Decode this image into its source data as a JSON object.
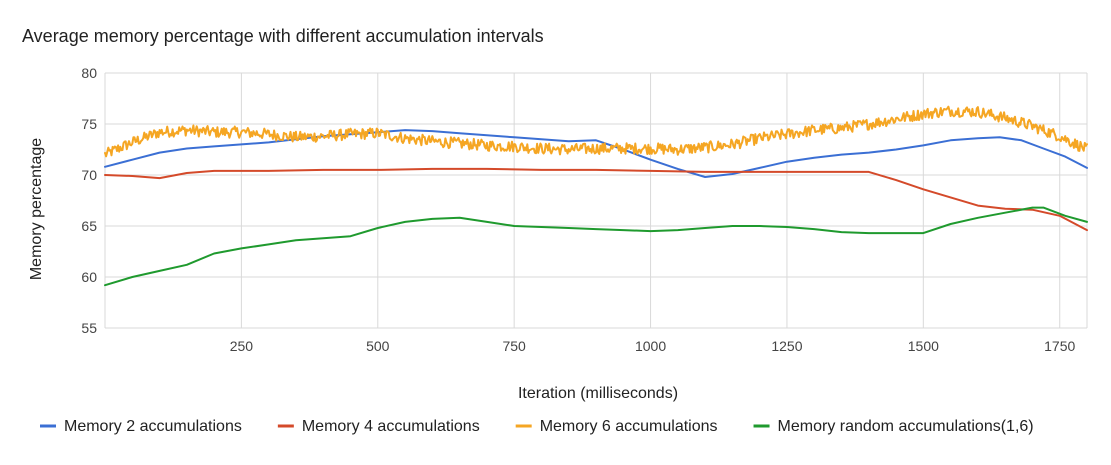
{
  "chart_data": {
    "type": "line",
    "title": "Average memory percentage with different accumulation intervals",
    "xlabel": "Iteration (milliseconds)",
    "ylabel": "Memory percentage",
    "xlim": [
      0,
      1800
    ],
    "ylim": [
      55,
      80
    ],
    "x_ticks": [
      250,
      500,
      750,
      1000,
      1250,
      1500,
      1750
    ],
    "y_ticks": [
      55,
      60,
      65,
      70,
      75,
      80
    ],
    "grid": true,
    "legend_position": "bottom",
    "series": [
      {
        "name": "Memory 2 accumulations",
        "color": "#3b6fd4",
        "noise": 0,
        "points": [
          [
            0,
            70.8
          ],
          [
            50,
            71.5
          ],
          [
            100,
            72.2
          ],
          [
            150,
            72.6
          ],
          [
            200,
            72.8
          ],
          [
            250,
            73.0
          ],
          [
            300,
            73.2
          ],
          [
            350,
            73.5
          ],
          [
            400,
            73.8
          ],
          [
            450,
            74.0
          ],
          [
            500,
            74.2
          ],
          [
            550,
            74.4
          ],
          [
            600,
            74.3
          ],
          [
            650,
            74.1
          ],
          [
            700,
            73.9
          ],
          [
            750,
            73.7
          ],
          [
            800,
            73.5
          ],
          [
            850,
            73.3
          ],
          [
            900,
            73.4
          ],
          [
            950,
            72.5
          ],
          [
            1000,
            71.5
          ],
          [
            1050,
            70.6
          ],
          [
            1100,
            69.8
          ],
          [
            1150,
            70.1
          ],
          [
            1200,
            70.7
          ],
          [
            1250,
            71.3
          ],
          [
            1300,
            71.7
          ],
          [
            1350,
            72.0
          ],
          [
            1400,
            72.2
          ],
          [
            1450,
            72.5
          ],
          [
            1500,
            72.9
          ],
          [
            1550,
            73.4
          ],
          [
            1600,
            73.6
          ],
          [
            1640,
            73.7
          ],
          [
            1680,
            73.4
          ],
          [
            1720,
            72.6
          ],
          [
            1760,
            71.8
          ],
          [
            1800,
            70.7
          ]
        ]
      },
      {
        "name": "Memory 4 accumulations",
        "color": "#d44a2a",
        "noise": 0,
        "points": [
          [
            0,
            70.0
          ],
          [
            50,
            69.9
          ],
          [
            100,
            69.7
          ],
          [
            150,
            70.2
          ],
          [
            200,
            70.4
          ],
          [
            300,
            70.4
          ],
          [
            400,
            70.5
          ],
          [
            500,
            70.5
          ],
          [
            600,
            70.6
          ],
          [
            700,
            70.6
          ],
          [
            800,
            70.5
          ],
          [
            900,
            70.5
          ],
          [
            1000,
            70.4
          ],
          [
            1100,
            70.3
          ],
          [
            1200,
            70.3
          ],
          [
            1300,
            70.3
          ],
          [
            1350,
            70.3
          ],
          [
            1400,
            70.3
          ],
          [
            1450,
            69.5
          ],
          [
            1500,
            68.6
          ],
          [
            1550,
            67.8
          ],
          [
            1600,
            67.0
          ],
          [
            1650,
            66.7
          ],
          [
            1700,
            66.6
          ],
          [
            1750,
            66.0
          ],
          [
            1800,
            64.6
          ]
        ]
      },
      {
        "name": "Memory 6 accumulations",
        "color": "#f5a623",
        "noise": 0.55,
        "points": [
          [
            0,
            72.0
          ],
          [
            50,
            73.2
          ],
          [
            100,
            74.2
          ],
          [
            150,
            74.4
          ],
          [
            200,
            74.2
          ],
          [
            250,
            74.2
          ],
          [
            300,
            74.0
          ],
          [
            350,
            73.7
          ],
          [
            400,
            73.8
          ],
          [
            450,
            74.0
          ],
          [
            500,
            74.1
          ],
          [
            550,
            73.6
          ],
          [
            600,
            73.3
          ],
          [
            650,
            73.1
          ],
          [
            700,
            72.9
          ],
          [
            750,
            72.8
          ],
          [
            800,
            72.6
          ],
          [
            850,
            72.5
          ],
          [
            900,
            72.6
          ],
          [
            950,
            72.6
          ],
          [
            1000,
            72.6
          ],
          [
            1050,
            72.5
          ],
          [
            1100,
            72.7
          ],
          [
            1150,
            73.0
          ],
          [
            1200,
            73.6
          ],
          [
            1250,
            74.0
          ],
          [
            1300,
            74.4
          ],
          [
            1350,
            74.6
          ],
          [
            1400,
            75.0
          ],
          [
            1450,
            75.5
          ],
          [
            1500,
            76.0
          ],
          [
            1550,
            76.3
          ],
          [
            1600,
            76.2
          ],
          [
            1650,
            75.6
          ],
          [
            1700,
            74.8
          ],
          [
            1750,
            73.8
          ],
          [
            1800,
            72.5
          ]
        ]
      },
      {
        "name": "Memory random accumulations(1,6)",
        "color": "#1f9a2e",
        "noise": 0,
        "points": [
          [
            0,
            59.2
          ],
          [
            50,
            60.0
          ],
          [
            100,
            60.6
          ],
          [
            150,
            61.2
          ],
          [
            200,
            62.3
          ],
          [
            250,
            62.8
          ],
          [
            300,
            63.2
          ],
          [
            350,
            63.6
          ],
          [
            400,
            63.8
          ],
          [
            450,
            64.0
          ],
          [
            500,
            64.8
          ],
          [
            550,
            65.4
          ],
          [
            600,
            65.7
          ],
          [
            650,
            65.8
          ],
          [
            700,
            65.4
          ],
          [
            750,
            65.0
          ],
          [
            800,
            64.9
          ],
          [
            850,
            64.8
          ],
          [
            900,
            64.7
          ],
          [
            950,
            64.6
          ],
          [
            1000,
            64.5
          ],
          [
            1050,
            64.6
          ],
          [
            1100,
            64.8
          ],
          [
            1150,
            65.0
          ],
          [
            1200,
            65.0
          ],
          [
            1250,
            64.9
          ],
          [
            1300,
            64.7
          ],
          [
            1350,
            64.4
          ],
          [
            1400,
            64.3
          ],
          [
            1450,
            64.3
          ],
          [
            1500,
            64.3
          ],
          [
            1550,
            65.2
          ],
          [
            1600,
            65.8
          ],
          [
            1650,
            66.3
          ],
          [
            1700,
            66.8
          ],
          [
            1720,
            66.8
          ],
          [
            1760,
            66.0
          ],
          [
            1800,
            65.4
          ]
        ]
      }
    ]
  }
}
